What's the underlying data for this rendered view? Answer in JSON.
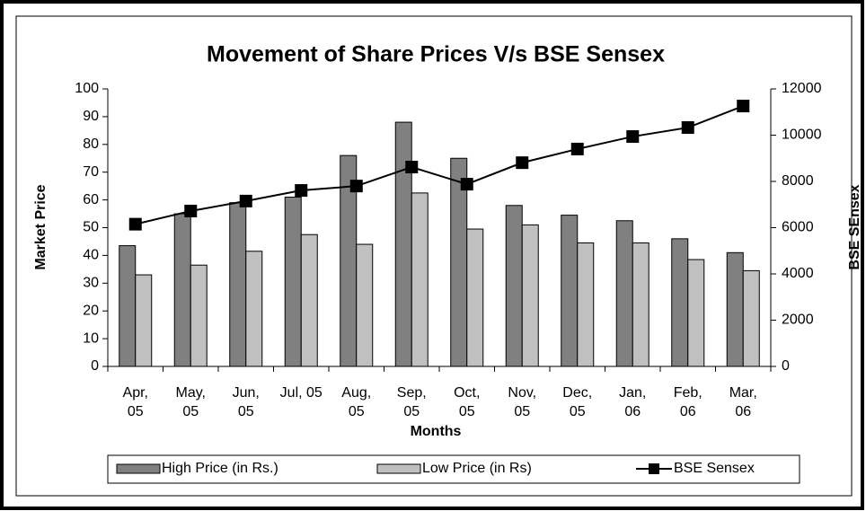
{
  "chart_data": {
    "type": "bar",
    "title": "Movement of Share Prices V/s BSE Sensex",
    "x_label": "Months",
    "y_label": "Market Price",
    "y2_label": "BSE SEnsex",
    "categories": [
      "Apr, 05",
      "May, 05",
      "Jun, 05",
      "Jul, 05",
      "Aug, 05",
      "Sep, 05",
      "Oct, 05",
      "Nov, 05",
      "Dec, 05",
      "Jan, 06",
      "Feb, 06",
      "Mar, 06"
    ],
    "series": [
      {
        "name": "High Price (in Rs.)",
        "type": "bar",
        "color": "#808080",
        "values": [
          43.5,
          55,
          59,
          61,
          76,
          88,
          75,
          58,
          54.5,
          52.5,
          46,
          41
        ]
      },
      {
        "name": "Low Price (in Rs)",
        "type": "bar",
        "color": "#c0c0c0",
        "values": [
          33,
          36.5,
          41.5,
          47.5,
          44,
          62.5,
          49.5,
          51,
          44.5,
          44.5,
          38.5,
          34.5
        ]
      },
      {
        "name": "BSE Sensex",
        "type": "line",
        "axis": "y2",
        "color": "#000000",
        "values": [
          6150,
          6720,
          7150,
          7610,
          7800,
          8620,
          7880,
          8810,
          9400,
          9940,
          10330,
          11260
        ]
      }
    ],
    "ylim": [
      0,
      100
    ],
    "yticks": [
      0,
      10,
      20,
      30,
      40,
      50,
      60,
      70,
      80,
      90,
      100
    ],
    "y2lim": [
      0,
      12000
    ],
    "y2ticks": [
      0,
      2000,
      4000,
      6000,
      8000,
      10000,
      12000
    ],
    "grid": false,
    "legend": "bottom"
  }
}
